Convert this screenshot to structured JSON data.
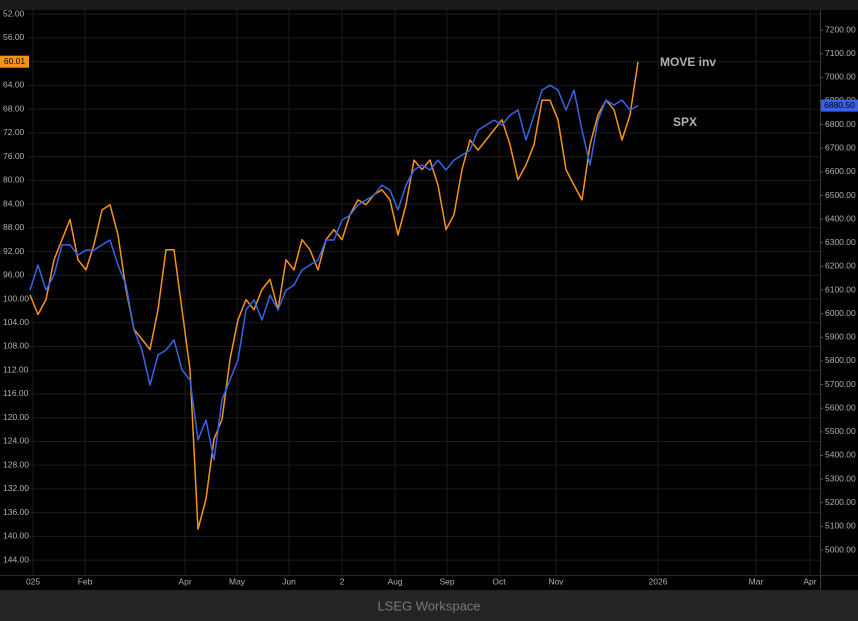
{
  "chart_data": {
    "type": "line",
    "xlim": [
      -0.25,
      98.75
    ],
    "xticks": [
      {
        "value": 0.38,
        "label": "025"
      },
      {
        "value": 6.88,
        "label": "Feb"
      },
      {
        "value": 19.38,
        "label": "Apr"
      },
      {
        "value": 25.88,
        "label": "May"
      },
      {
        "value": 32.38,
        "label": "Jun"
      },
      {
        "value": 39,
        "label": "2"
      },
      {
        "value": 45.63,
        "label": "Aug"
      },
      {
        "value": 52.13,
        "label": "Sep"
      },
      {
        "value": 58.63,
        "label": "Oct"
      },
      {
        "value": 65.75,
        "label": "Nov"
      },
      {
        "value": 78.5,
        "label": "2026"
      },
      {
        "value": 90.75,
        "label": "Mar"
      },
      {
        "value": 97.5,
        "label": "Apr"
      }
    ],
    "ylim": [
      146,
      51.3
    ],
    "yticks": [
      {
        "value": 52,
        "label": "52.00"
      },
      {
        "value": 56,
        "label": "56.00"
      },
      {
        "value": 60,
        "label": "60.00"
      },
      {
        "value": 64,
        "label": "64.00"
      },
      {
        "value": 68,
        "label": "68.00"
      },
      {
        "value": 72,
        "label": "72.00"
      },
      {
        "value": 76,
        "label": "76.00"
      },
      {
        "value": 80,
        "label": "80.00"
      },
      {
        "value": 84,
        "label": "84.00"
      },
      {
        "value": 88,
        "label": "88.00"
      },
      {
        "value": 92,
        "label": "92.00"
      },
      {
        "value": 96,
        "label": "96.00"
      },
      {
        "value": 100,
        "label": "100.00"
      },
      {
        "value": 104,
        "label": "104.00"
      },
      {
        "value": 108,
        "label": "108.00"
      },
      {
        "value": 112,
        "label": "112.00"
      },
      {
        "value": 116,
        "label": "116.00"
      },
      {
        "value": 120,
        "label": "120.00"
      },
      {
        "value": 124,
        "label": "124.00"
      },
      {
        "value": 128,
        "label": "128.00"
      },
      {
        "value": 132,
        "label": "132.00"
      },
      {
        "value": 136,
        "label": "136.00"
      },
      {
        "value": 140,
        "label": "140.00"
      },
      {
        "value": 144,
        "label": "144.00"
      }
    ],
    "y2lim": [
      4907,
      7285
    ],
    "y2ticks": [
      {
        "value": 5000,
        "label": "5000.00"
      },
      {
        "value": 5100,
        "label": "5100.00"
      },
      {
        "value": 5200,
        "label": "5200.00"
      },
      {
        "value": 5300,
        "label": "5300.00"
      },
      {
        "value": 5400,
        "label": "5400.00"
      },
      {
        "value": 5500,
        "label": "5500.00"
      },
      {
        "value": 5600,
        "label": "5600.00"
      },
      {
        "value": 5700,
        "label": "5700.00"
      },
      {
        "value": 5800,
        "label": "5800.00"
      },
      {
        "value": 5900,
        "label": "5900.00"
      },
      {
        "value": 6000,
        "label": "6000.00"
      },
      {
        "value": 6100,
        "label": "6100.00"
      },
      {
        "value": 6200,
        "label": "6200.00"
      },
      {
        "value": 6300,
        "label": "6300.00"
      },
      {
        "value": 6400,
        "label": "6400.00"
      },
      {
        "value": 6500,
        "label": "6500.00"
      },
      {
        "value": 6600,
        "label": "6600.00"
      },
      {
        "value": 6700,
        "label": "6700.00"
      },
      {
        "value": 6800,
        "label": "6800.00"
      },
      {
        "value": 6900,
        "label": "6900.00"
      },
      {
        "value": 7000,
        "label": "7000.00"
      },
      {
        "value": 7100,
        "label": "7100.00"
      },
      {
        "value": 7200,
        "label": "7200.00"
      }
    ],
    "grid": true,
    "series": [
      {
        "name": "MOVE inv",
        "color": "#f7931a",
        "last_label": "60.01",
        "values": [
          99.3,
          102.6,
          100.1,
          93.4,
          90.0,
          86.6,
          93.4,
          95.1,
          90.8,
          85.0,
          84.1,
          89.2,
          98.4,
          105.1,
          106.8,
          108.5,
          101.8,
          91.7,
          91.7,
          101.8,
          111.9,
          138.8,
          133.7,
          123.6,
          120.3,
          110.2,
          103.5,
          100.1,
          101.8,
          98.4,
          96.7,
          101.8,
          93.4,
          95.1,
          90.0,
          91.7,
          95.1,
          90.0,
          88.3,
          90.0,
          85.8,
          83.3,
          84.1,
          82.4,
          81.6,
          83.3,
          89.2,
          84.1,
          76.6,
          78.2,
          76.6,
          80.8,
          88.3,
          85.8,
          78.2,
          73.2,
          74.9,
          73.2,
          71.5,
          69.8,
          74.0,
          79.9,
          77.4,
          74.0,
          66.5,
          66.5,
          69.8,
          78.2,
          80.8,
          83.3,
          74.0,
          69.0,
          66.5,
          68.1,
          73.2,
          69.0,
          60.01
        ]
      },
      {
        "name": "SPX",
        "color": "#3a62e6",
        "axis": "y2",
        "last_label": "6880.50",
        "values": [
          6100,
          6206,
          6100,
          6164,
          6291,
          6291,
          6248,
          6269,
          6269,
          6291,
          6312,
          6206,
          6121,
          5931,
          5846,
          5698,
          5825,
          5846,
          5889,
          5762,
          5720,
          5466,
          5550,
          5381,
          5635,
          5720,
          5804,
          6016,
          6058,
          5973,
          6079,
          6016,
          6100,
          6121,
          6185,
          6206,
          6227,
          6312,
          6312,
          6396,
          6417,
          6460,
          6481,
          6502,
          6544,
          6523,
          6439,
          6544,
          6608,
          6629,
          6608,
          6650,
          6608,
          6650,
          6671,
          6692,
          6777,
          6798,
          6819,
          6798,
          6840,
          6862,
          6735,
          6840,
          6946,
          6967,
          6946,
          6862,
          6946,
          6777,
          6629,
          6819,
          6904,
          6883,
          6904,
          6862,
          6880.5
        ]
      }
    ],
    "footer": "LSEG Workspace"
  }
}
